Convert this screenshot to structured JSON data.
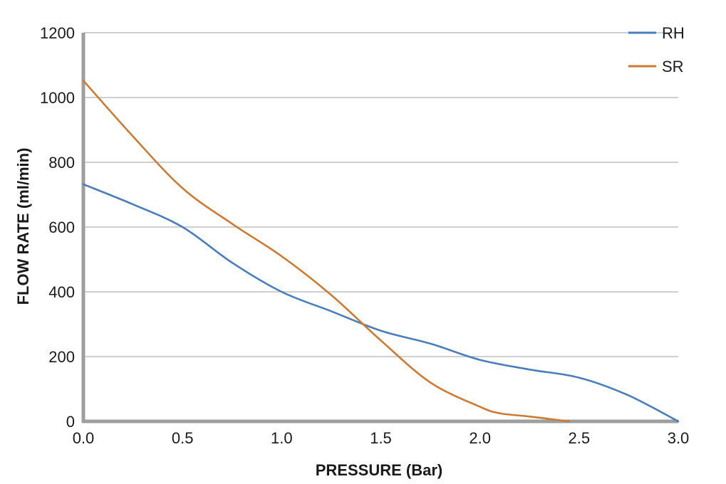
{
  "chart_data": {
    "type": "line",
    "title": "",
    "xlabel": "PRESSURE (Bar)",
    "ylabel": "FLOW RATE (ml/min)",
    "xlim": [
      0,
      3
    ],
    "ylim": [
      0,
      1200
    ],
    "x_ticks": [
      "0.0",
      "0.5",
      "1.0",
      "1.5",
      "2.0",
      "2.5",
      "3.0"
    ],
    "y_ticks": [
      "0",
      "200",
      "400",
      "600",
      "800",
      "1000",
      "1200"
    ],
    "grid": "horizontal",
    "legend_position": "top-right",
    "series": [
      {
        "name": "RH",
        "color": "#4a7ebb",
        "x": [
          0,
          0.25,
          0.5,
          0.75,
          1.0,
          1.25,
          1.5,
          1.75,
          2.0,
          2.25,
          2.5,
          2.75,
          3.0
        ],
        "y": [
          732,
          670,
          600,
          490,
          400,
          340,
          280,
          240,
          190,
          160,
          135,
          80,
          0
        ]
      },
      {
        "name": "SR",
        "color": "#cd7a32",
        "x": [
          0,
          0.25,
          0.5,
          0.75,
          1.0,
          1.25,
          1.5,
          1.75,
          2.0,
          2.1,
          2.25,
          2.45
        ],
        "y": [
          1052,
          880,
          720,
          610,
          510,
          390,
          250,
          120,
          45,
          25,
          15,
          0
        ]
      }
    ]
  }
}
